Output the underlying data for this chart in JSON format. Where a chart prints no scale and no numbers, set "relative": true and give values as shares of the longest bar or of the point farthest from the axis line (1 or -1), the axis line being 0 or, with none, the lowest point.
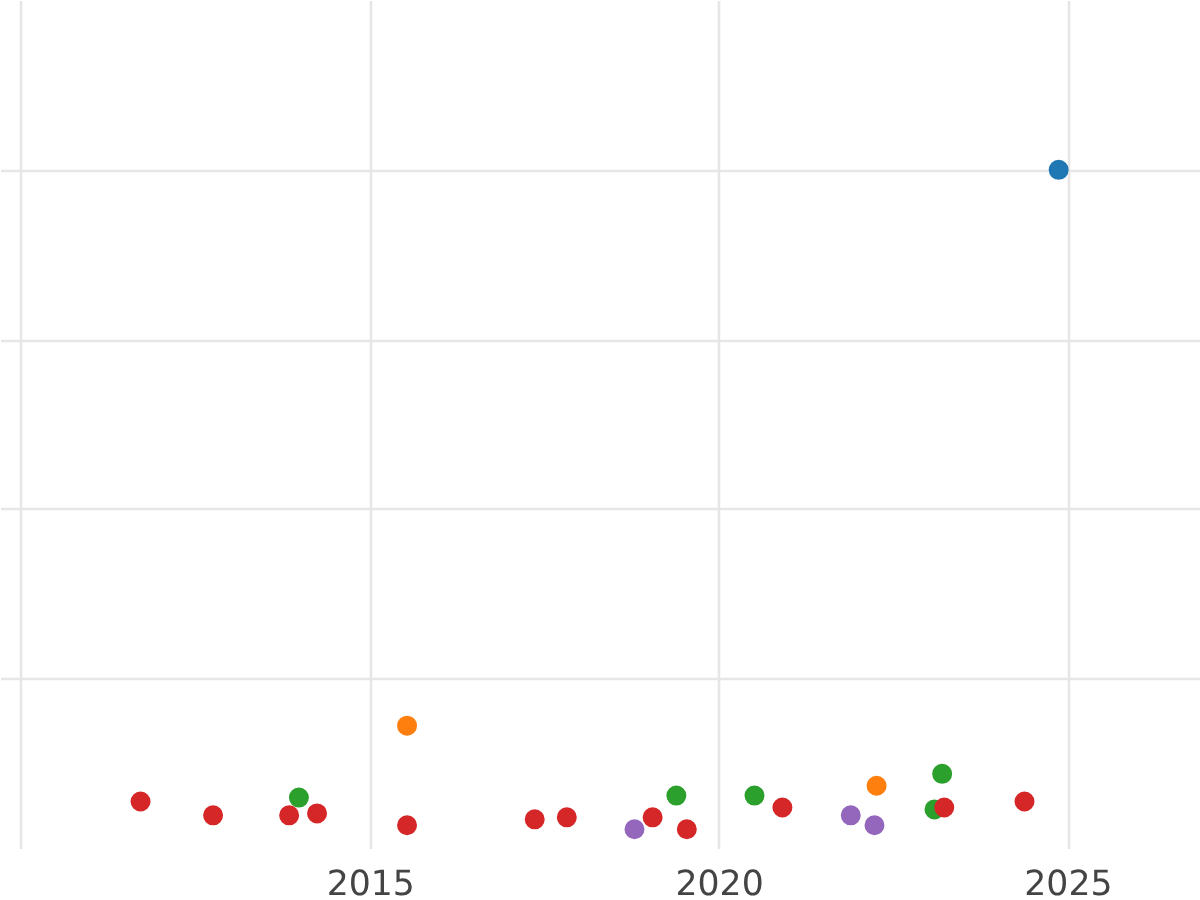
{
  "chart_data": {
    "type": "scatter",
    "relative": true,
    "grid": true,
    "marker": "circle",
    "tick_labels": "x",
    "xlim": [
      2009.7,
      2026.9
    ],
    "xticks": [
      {
        "value": 2010,
        "label": null
      },
      2015,
      2020,
      2025
    ],
    "series": [
      {
        "color": "#1f77b4",
        "x": [
          2024.86
        ],
        "values": [
          1
        ]
      },
      {
        "color": "#ff7f0e",
        "x": [
          2015.52,
          2022.25
        ],
        "values": [
          0.157,
          0.066
        ]
      },
      {
        "color": "#2ca02c",
        "x": [
          2013.97,
          2019.38,
          2020.5,
          2023.19,
          2023.08
        ],
        "values": [
          0.048,
          0.051,
          0.051,
          0.084,
          0.03
        ]
      },
      {
        "color": "#d62728",
        "x": [
          2011.7,
          2012.74,
          2013.83,
          2014.23,
          2015.52,
          2017.35,
          2017.81,
          2019.04,
          2019.53,
          2020.9,
          2023.22,
          2024.37
        ],
        "values": [
          0.042,
          0.021,
          0.021,
          0.024,
          0.006,
          0.015,
          0.018,
          0.018,
          0.0,
          0.033,
          0.033,
          0.042
        ]
      },
      {
        "color": "#9467bd",
        "x": [
          2018.78,
          2021.88,
          2022.22
        ],
        "values": [
          0.0,
          0.021,
          0.006
        ]
      }
    ]
  }
}
